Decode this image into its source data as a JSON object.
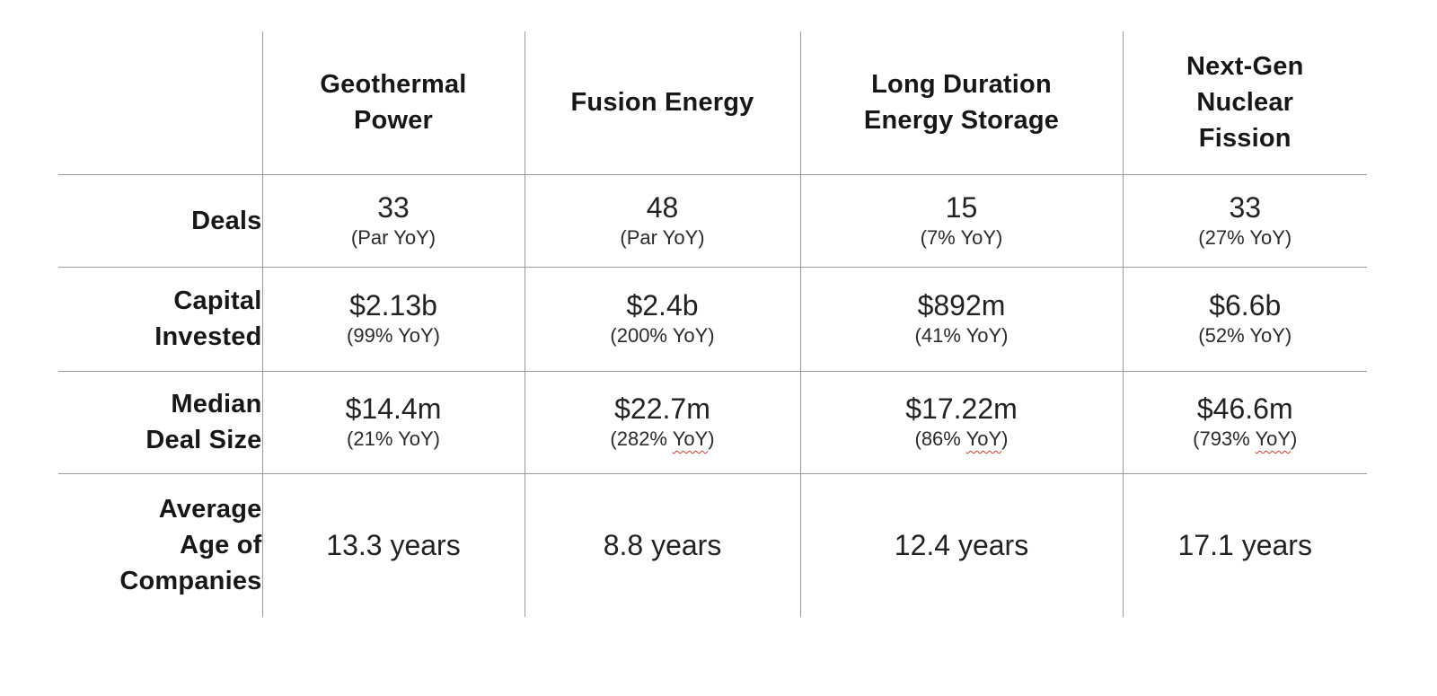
{
  "colors": {
    "border": "#9a9a9a",
    "text": "#1f1f1f",
    "squiggle_red": "#d23b2e"
  },
  "table": {
    "corner_label": "",
    "columns": [
      "Geothermal\nPower",
      "Fusion Energy",
      "Long Duration\nEnergy Storage",
      "Next-Gen\nNuclear\nFission"
    ],
    "rows": [
      {
        "label": "Deals",
        "cells": [
          {
            "value": "33",
            "sub": "(Par YoY)",
            "squiggle": false
          },
          {
            "value": "48",
            "sub": "(Par YoY)",
            "squiggle": false
          },
          {
            "value": "15",
            "sub": "(7% YoY)",
            "squiggle": false
          },
          {
            "value": "33",
            "sub": "(27% YoY)",
            "squiggle": false
          }
        ]
      },
      {
        "label": "Capital\nInvested",
        "cells": [
          {
            "value": "$2.13b",
            "sub": "(99% YoY)",
            "squiggle": false
          },
          {
            "value": "$2.4b",
            "sub": "(200% YoY)",
            "squiggle": false
          },
          {
            "value": "$892m",
            "sub": "(41% YoY)",
            "squiggle": false
          },
          {
            "value": "$6.6b",
            "sub": "(52% YoY)",
            "squiggle": false
          }
        ]
      },
      {
        "label": "Median\nDeal Size",
        "cells": [
          {
            "value": "$14.4m",
            "sub": "(21% YoY)",
            "squiggle": false
          },
          {
            "value": "$22.7m",
            "sub": "(282% YoY)",
            "squiggle": true
          },
          {
            "value": "$17.22m",
            "sub": "(86% YoY)",
            "squiggle": true
          },
          {
            "value": "$46.6m",
            "sub": "(793% YoY)",
            "squiggle": true
          }
        ]
      },
      {
        "label": "Average\nAge of\nCompanies",
        "cells": [
          {
            "value": "13.3 years",
            "sub": "",
            "squiggle": false
          },
          {
            "value": "8.8 years",
            "sub": "",
            "squiggle": false
          },
          {
            "value": "12.4 years",
            "sub": "",
            "squiggle": false
          },
          {
            "value": "17.1 years",
            "sub": "",
            "squiggle": false
          }
        ]
      }
    ],
    "squiggle_word": "YoY"
  },
  "chart_data": {
    "type": "table",
    "title": "",
    "columns": [
      "Geothermal Power",
      "Fusion Energy",
      "Long Duration Energy Storage",
      "Next-Gen Nuclear Fission"
    ],
    "rows": [
      {
        "metric": "Deals",
        "values": [
          "33 (Par YoY)",
          "48 (Par YoY)",
          "15 (7% YoY)",
          "33 (27% YoY)"
        ]
      },
      {
        "metric": "Capital Invested",
        "values": [
          "$2.13b (99% YoY)",
          "$2.4b (200% YoY)",
          "$892m (41% YoY)",
          "$6.6b (52% YoY)"
        ]
      },
      {
        "metric": "Median Deal Size",
        "values": [
          "$14.4m (21% YoY)",
          "$22.7m (282% YoY)",
          "$17.22m (86% YoY)",
          "$46.6m (793% YoY)"
        ]
      },
      {
        "metric": "Average Age of Companies",
        "values": [
          "13.3 years",
          "8.8 years",
          "12.4 years",
          "17.1 years"
        ]
      }
    ],
    "layout": {
      "gridlines": "inner-only",
      "outer_border": false,
      "first_column_align": "right",
      "cell_align": "center"
    }
  }
}
